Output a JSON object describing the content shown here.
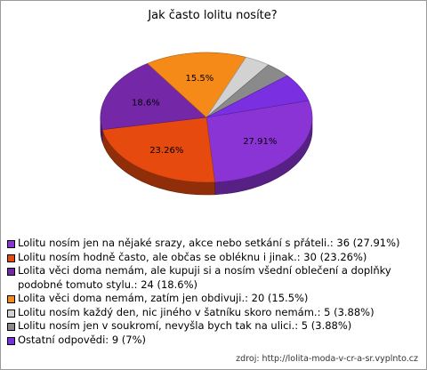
{
  "chart_data": {
    "type": "pie",
    "title": "Jak často lolitu nosíte?",
    "slices": [
      {
        "label": "Lolitu nosím jen na nějaké srazy, akce nebo setkání s přáteli.: 36 (27.91%)",
        "value": 36,
        "percent_label": "27.91%",
        "color": "#8b34d6"
      },
      {
        "label": "Lolitu nosím hodně často, ale občas se obléknu i jinak.: 30 (23.26%)",
        "value": 30,
        "percent_label": "23.26%",
        "color": "#e64a0e"
      },
      {
        "label": "Lolita věci doma nemám, ale kupuji si a nosím všední oblečení a doplňky podobné tomuto stylu.: 24 (18.6%)",
        "value": 24,
        "percent_label": "18.6%",
        "color": "#7428a8"
      },
      {
        "label": "Lolita věci doma nemám, zatím jen obdivuji.: 20 (15.5%)",
        "value": 20,
        "percent_label": "15.5%",
        "color": "#f58a18"
      },
      {
        "label": "Lolitu nosím každý den, nic jiného v šatníku skoro nemám.: 5 (3.88%)",
        "value": 5,
        "percent_label": "",
        "color": "#d2d2d2"
      },
      {
        "label": "Lolitu nosím jen v soukromí, nevyšla bych tak na ulici.: 5 (3.88%)",
        "value": 5,
        "percent_label": "",
        "color": "#8a8a8a"
      },
      {
        "label": "Ostatní odpovědi: 9 (7%)",
        "value": 9,
        "percent_label": "",
        "color": "#7a30e0"
      }
    ]
  },
  "source": "zdroj:  http://lolita-moda-v-cr-a-sr.vyplnto.cz"
}
